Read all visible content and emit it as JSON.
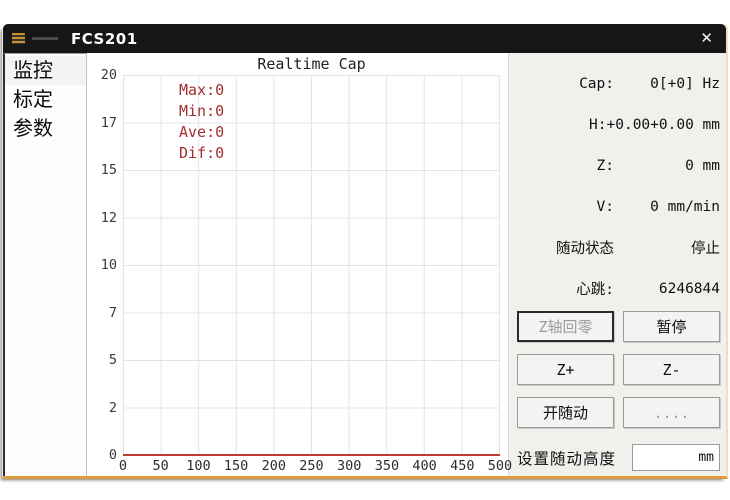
{
  "window": {
    "title": "FCS201",
    "close_glyph": "✕"
  },
  "sidebar": {
    "items": [
      {
        "label": "监控",
        "selected": true
      },
      {
        "label": "标定",
        "selected": false
      },
      {
        "label": "参数",
        "selected": false
      }
    ]
  },
  "chart_data": {
    "type": "line",
    "title": "Realtime Cap",
    "xlabel": "",
    "ylabel": "",
    "xlim": [
      0,
      500
    ],
    "ylim": [
      0,
      20
    ],
    "grid": true,
    "x_ticks": [
      "0",
      "50",
      "100",
      "150",
      "200",
      "250",
      "300",
      "350",
      "400",
      "450",
      "500"
    ],
    "y_ticks": [
      "20",
      "17",
      "15",
      "12",
      "10",
      "7",
      "5",
      "2",
      "0"
    ],
    "series": [
      {
        "name": "Cap",
        "color": "#c23b35",
        "x_range": [
          0,
          500
        ],
        "constant_y": 0
      }
    ],
    "stats": {
      "max": "Max:0",
      "min": "Min:0",
      "ave": "Ave:0",
      "dif": "Dif:0"
    },
    "stats_color": "#a32d2d"
  },
  "status": {
    "rows": [
      {
        "label": "Cap:",
        "value": "0[+0] Hz"
      },
      {
        "label": "H:",
        "value": "+0.00+0.00 mm"
      },
      {
        "label": "Z:",
        "value": "0 mm"
      },
      {
        "label": "V:",
        "value": "0 mm/min"
      },
      {
        "label": "随动状态",
        "value": "停止"
      },
      {
        "label": "心跳:",
        "value": "6246844"
      }
    ]
  },
  "controls": {
    "buttons": [
      {
        "label": "Z轴回零",
        "state": "disabled-default"
      },
      {
        "label": "暂停",
        "state": "enabled"
      },
      {
        "label": "Z+",
        "state": "enabled"
      },
      {
        "label": "Z-",
        "state": "enabled"
      },
      {
        "label": "开随动",
        "state": "enabled"
      },
      {
        "label": "....",
        "state": "disabled"
      }
    ],
    "follow_height": {
      "label": "设置随动高度",
      "value": "",
      "unit": "mm"
    }
  },
  "colors": {
    "titlebar_bg": "#161616",
    "panel_bg": "#f2f0ed",
    "window_bottom_border": "#e09a3e",
    "grid_line": "#e4e4e4",
    "series_red": "#c23b35"
  }
}
